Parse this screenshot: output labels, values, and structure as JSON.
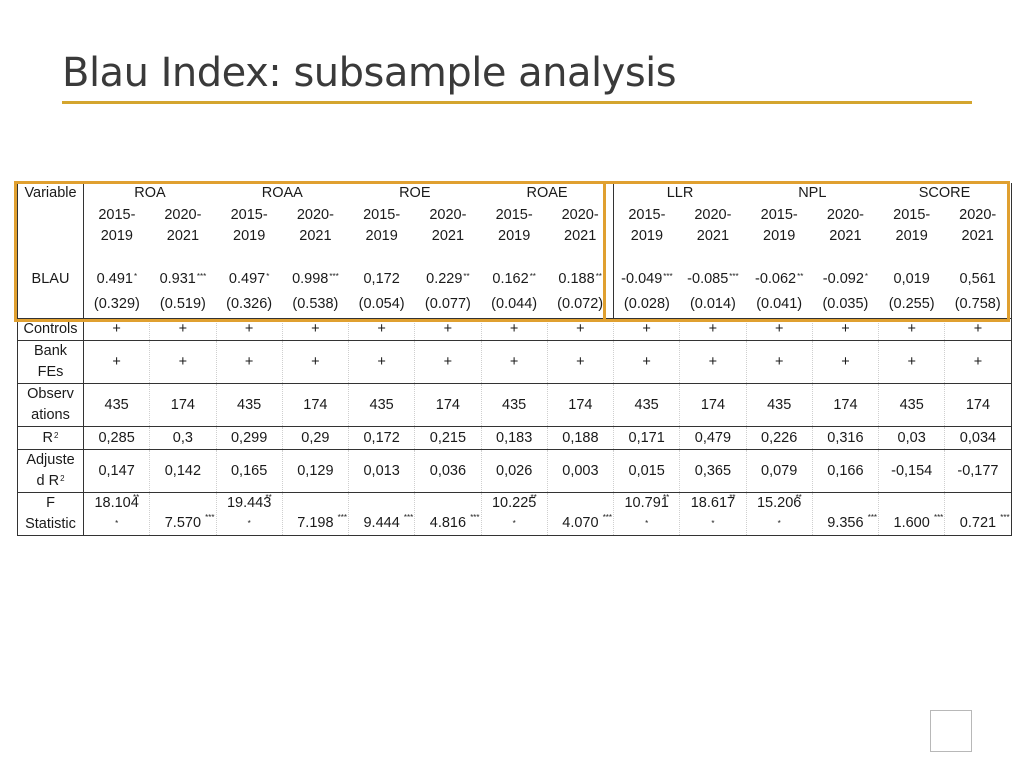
{
  "title": "Blau Index: subsample analysis",
  "header": {
    "variable_label": "Variable",
    "groups": [
      "ROA",
      "ROAA",
      "ROE",
      "ROAE",
      "LLR",
      "NPL",
      "SCORE"
    ],
    "periods": [
      "2015-\n2019",
      "2020-\n2021",
      "2015-\n2019",
      "2020-\n2021",
      "2015-\n2019",
      "2020-\n2021",
      "2015-\n2019",
      "2020-\n2021",
      "2015-\n2019",
      "2020-\n2021",
      "2015-\n2019",
      "2020-\n2021",
      "2015-\n2019",
      "2020-\n2021"
    ]
  },
  "rows": {
    "blau": {
      "label": "BLAU",
      "values": [
        "0.491",
        "0.931",
        "0.497",
        "0.998",
        "0,172",
        "0.229",
        "0.162",
        "0.188",
        "-0.049",
        "-0.085",
        "-0.062",
        "-0.092",
        "0,019",
        "0,561"
      ],
      "stars": [
        "*",
        "***",
        "*",
        "***",
        "",
        "**",
        "**",
        "**",
        "***",
        "***",
        "**",
        "*",
        "",
        ""
      ]
    },
    "se": {
      "values": [
        "(0.329)",
        "(0.519)",
        "(0.326)",
        "(0.538)",
        "(0.054)",
        "(0.077)",
        "(0.044)",
        "(0.072)",
        "(0.028)",
        "(0.014)",
        "(0.041)",
        "(0.035)",
        "(0.255)",
        "(0.758)"
      ]
    },
    "controls": {
      "label": "Controls",
      "values": [
        "+",
        "+",
        "+",
        "+",
        "+",
        "+",
        "+",
        "+",
        "+",
        "+",
        "+",
        "+",
        "+",
        "+"
      ]
    },
    "bank_fes": {
      "label": "Bank\nFEs",
      "values": [
        "+",
        "+",
        "+",
        "+",
        "+",
        "+",
        "+",
        "+",
        "+",
        "+",
        "+",
        "+",
        "+",
        "+"
      ]
    },
    "observations": {
      "label": "Observ\nations",
      "values": [
        "435",
        "174",
        "435",
        "174",
        "435",
        "174",
        "435",
        "174",
        "435",
        "174",
        "435",
        "174",
        "435",
        "174"
      ]
    },
    "r2": {
      "label": "R",
      "label_sup": "2",
      "values": [
        "0,285",
        "0,3",
        "0,299",
        "0,29",
        "0,172",
        "0,215",
        "0,183",
        "0,188",
        "0,171",
        "0,479",
        "0,226",
        "0,316",
        "0,03",
        "0,034"
      ]
    },
    "adj_r2": {
      "label_line1": "Adjuste",
      "label_line2": "d R",
      "label_sup": "2",
      "values": [
        "0,147",
        "0,142",
        "0,165",
        "0,129",
        "0,013",
        "0,036",
        "0,026",
        "0,003",
        "0,015",
        "0,365",
        "0,079",
        "0,166",
        "-0,154",
        "-0,177"
      ]
    },
    "f_stat": {
      "label": "F\nStatistic",
      "values": [
        "18.104",
        "7.570",
        "19.443",
        "7.198",
        "9.444",
        "4.816",
        "10.225",
        "4.070",
        "10.791",
        "18.617",
        "15.206",
        "9.356",
        "1.600",
        "0.721"
      ],
      "stars": [
        "***",
        "***",
        "***",
        "***",
        "***",
        "***",
        "***",
        "***",
        "***",
        "***",
        "***",
        "***",
        "***",
        "***"
      ],
      "split_star": [
        true,
        false,
        true,
        false,
        false,
        false,
        true,
        false,
        true,
        true,
        true,
        false,
        false,
        false
      ]
    }
  },
  "colors": {
    "accent": "#e0a030",
    "title_rule": "#d4a52e"
  }
}
